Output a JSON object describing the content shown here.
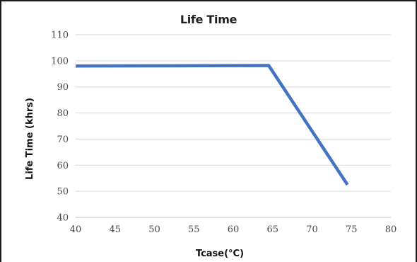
{
  "chart_data": {
    "type": "line",
    "title": "Life Time",
    "xlabel": "Tcase(°C)",
    "ylabel": "Life Time  (khrs)",
    "xlim": [
      40,
      80
    ],
    "ylim": [
      40,
      110
    ],
    "x_ticks": [
      40,
      45,
      50,
      55,
      60,
      65,
      70,
      75,
      80
    ],
    "y_ticks": [
      40,
      50,
      60,
      70,
      80,
      90,
      100,
      110
    ],
    "grid": "horizontal",
    "legend": "none",
    "series": [
      {
        "color": "#4472C4",
        "points": [
          [
            40,
            98
          ],
          [
            64.5,
            98.2
          ],
          [
            74.5,
            52.5
          ]
        ]
      }
    ]
  }
}
